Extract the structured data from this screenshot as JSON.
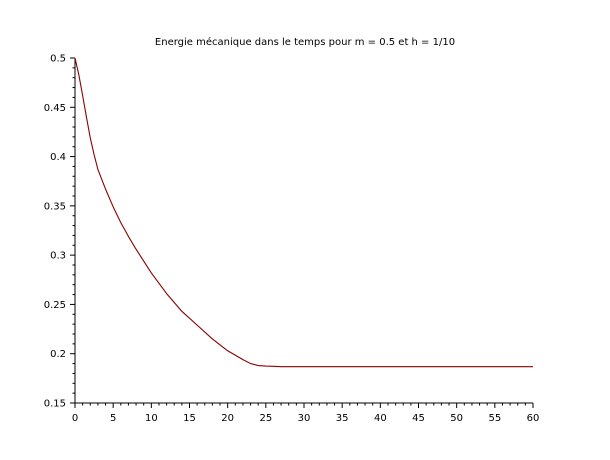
{
  "chart_data": {
    "type": "line",
    "title": "Energie mécanique dans le temps pour m = 0.5 et h = 1/10",
    "xlabel": "",
    "ylabel": "",
    "xlim": [
      0,
      60
    ],
    "ylim": [
      0.15,
      0.5
    ],
    "x_ticks": [
      "0",
      "5",
      "10",
      "15",
      "20",
      "25",
      "30",
      "35",
      "40",
      "45",
      "50",
      "55",
      "60"
    ],
    "y_ticks": [
      "0.15",
      "0.2",
      "0.25",
      "0.3",
      "0.35",
      "0.4",
      "0.45",
      "0.5"
    ],
    "grid": false,
    "legend": "none",
    "series": [
      {
        "color": "#8b0000",
        "x": [
          0,
          0.5,
          1,
          1.5,
          2,
          2.5,
          3,
          4,
          5,
          6,
          7,
          8,
          10,
          12,
          14,
          16,
          18,
          20,
          22,
          23,
          24,
          25,
          26,
          27,
          30,
          35,
          40,
          45,
          50,
          55,
          60
        ],
        "y": [
          0.5,
          0.483,
          0.462,
          0.44,
          0.419,
          0.402,
          0.387,
          0.367,
          0.349,
          0.333,
          0.319,
          0.306,
          0.282,
          0.261,
          0.243,
          0.229,
          0.215,
          0.203,
          0.194,
          0.19,
          0.188,
          0.1875,
          0.1872,
          0.1868,
          0.1868,
          0.1868,
          0.1868,
          0.1868,
          0.1868,
          0.1868,
          0.1868
        ]
      }
    ]
  }
}
